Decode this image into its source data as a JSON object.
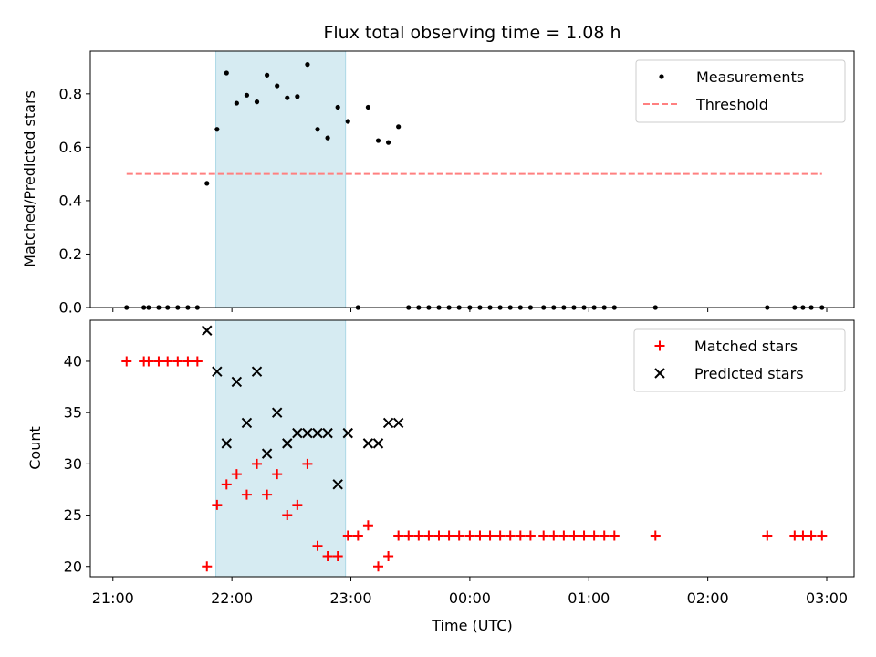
{
  "chart_data": {
    "type": "scatter",
    "title": "Flux total observing time = 1.08 h",
    "xlabel": "Time (UTC)",
    "x_unit": "hours since 21:00 UTC",
    "x_ticks": [
      {
        "value": 0,
        "label": "21:00"
      },
      {
        "value": 1,
        "label": "22:00"
      },
      {
        "value": 2,
        "label": "23:00"
      },
      {
        "value": 3,
        "label": "00:00"
      },
      {
        "value": 4,
        "label": "01:00"
      },
      {
        "value": 5,
        "label": "02:00"
      },
      {
        "value": 6,
        "label": "03:00"
      }
    ],
    "xlim": [
      -0.19,
      6.23
    ],
    "highlight_span": {
      "x0": 0.865,
      "x1": 1.955,
      "color": "#add8e6"
    },
    "panels": [
      {
        "id": "top",
        "ylabel": "Matched/Predicted stars",
        "ylim": [
          0,
          0.96
        ],
        "y_ticks": [
          {
            "value": 0.0,
            "label": "0.0"
          },
          {
            "value": 0.2,
            "label": "0.2"
          },
          {
            "value": 0.4,
            "label": "0.4"
          },
          {
            "value": 0.6,
            "label": "0.6"
          },
          {
            "value": 0.8,
            "label": "0.8"
          }
        ],
        "legend": {
          "position": "upper right",
          "entries": [
            "Measurements",
            "Threshold"
          ]
        },
        "series": [
          {
            "name": "Measurements",
            "marker": "dot",
            "color": "#000000",
            "points": [
              [
                0.115,
                0
              ],
              [
                0.26,
                0
              ],
              [
                0.3,
                0
              ],
              [
                0.385,
                0
              ],
              [
                0.46,
                0
              ],
              [
                0.545,
                0
              ],
              [
                0.63,
                0
              ],
              [
                0.71,
                0
              ],
              [
                0.79,
                0.465
              ],
              [
                0.875,
                0.667
              ],
              [
                0.955,
                0.878
              ],
              [
                1.04,
                0.765
              ],
              [
                1.125,
                0.795
              ],
              [
                1.21,
                0.77
              ],
              [
                1.295,
                0.87
              ],
              [
                1.38,
                0.83
              ],
              [
                1.465,
                0.785
              ],
              [
                1.55,
                0.79
              ],
              [
                1.635,
                0.91
              ],
              [
                1.72,
                0.667
              ],
              [
                1.805,
                0.635
              ],
              [
                1.89,
                0.75
              ],
              [
                1.975,
                0.697
              ],
              [
                2.06,
                0
              ],
              [
                2.145,
                0.75
              ],
              [
                2.23,
                0.625
              ],
              [
                2.315,
                0.618
              ],
              [
                2.4,
                0.677
              ],
              [
                2.485,
                0
              ],
              [
                2.57,
                0
              ],
              [
                2.655,
                0
              ],
              [
                2.74,
                0
              ],
              [
                2.825,
                0
              ],
              [
                2.91,
                0
              ],
              [
                3.0,
                0
              ],
              [
                3.085,
                0
              ],
              [
                3.17,
                0
              ],
              [
                3.255,
                0
              ],
              [
                3.34,
                0
              ],
              [
                3.425,
                0
              ],
              [
                3.51,
                0
              ],
              [
                3.62,
                0
              ],
              [
                3.705,
                0
              ],
              [
                3.79,
                0
              ],
              [
                3.875,
                0
              ],
              [
                3.96,
                0
              ],
              [
                4.045,
                0
              ],
              [
                4.13,
                0
              ],
              [
                4.215,
                0
              ],
              [
                4.56,
                0
              ],
              [
                5.5,
                0
              ],
              [
                5.73,
                0
              ],
              [
                5.8,
                0
              ],
              [
                5.87,
                0
              ],
              [
                5.96,
                0
              ]
            ]
          },
          {
            "name": "Threshold",
            "marker": "dashed-line",
            "color": "#ff8080",
            "value": 0.5,
            "x_range": [
              0.115,
              5.96
            ]
          }
        ]
      },
      {
        "id": "bottom",
        "ylabel": "Count",
        "ylim": [
          19,
          44
        ],
        "y_ticks": [
          {
            "value": 20,
            "label": "20"
          },
          {
            "value": 25,
            "label": "25"
          },
          {
            "value": 30,
            "label": "30"
          },
          {
            "value": 35,
            "label": "35"
          },
          {
            "value": 40,
            "label": "40"
          }
        ],
        "legend": {
          "position": "upper right",
          "entries": [
            "Matched stars",
            "Predicted stars"
          ]
        },
        "series": [
          {
            "name": "Matched stars",
            "marker": "plus",
            "color": "#ff0000",
            "points": [
              [
                0.115,
                40
              ],
              [
                0.26,
                40
              ],
              [
                0.3,
                40
              ],
              [
                0.385,
                40
              ],
              [
                0.46,
                40
              ],
              [
                0.545,
                40
              ],
              [
                0.63,
                40
              ],
              [
                0.71,
                40
              ],
              [
                0.79,
                20
              ],
              [
                0.875,
                26
              ],
              [
                0.955,
                28
              ],
              [
                1.04,
                29
              ],
              [
                1.125,
                27
              ],
              [
                1.21,
                30
              ],
              [
                1.295,
                27
              ],
              [
                1.38,
                29
              ],
              [
                1.465,
                25
              ],
              [
                1.55,
                26
              ],
              [
                1.635,
                30
              ],
              [
                1.72,
                22
              ],
              [
                1.805,
                21
              ],
              [
                1.89,
                21
              ],
              [
                1.975,
                23
              ],
              [
                2.06,
                23
              ],
              [
                2.145,
                24
              ],
              [
                2.23,
                20
              ],
              [
                2.315,
                21
              ],
              [
                2.4,
                23
              ],
              [
                2.485,
                23
              ],
              [
                2.57,
                23
              ],
              [
                2.655,
                23
              ],
              [
                2.74,
                23
              ],
              [
                2.825,
                23
              ],
              [
                2.91,
                23
              ],
              [
                3.0,
                23
              ],
              [
                3.085,
                23
              ],
              [
                3.17,
                23
              ],
              [
                3.255,
                23
              ],
              [
                3.34,
                23
              ],
              [
                3.425,
                23
              ],
              [
                3.51,
                23
              ],
              [
                3.62,
                23
              ],
              [
                3.705,
                23
              ],
              [
                3.79,
                23
              ],
              [
                3.875,
                23
              ],
              [
                3.96,
                23
              ],
              [
                4.045,
                23
              ],
              [
                4.13,
                23
              ],
              [
                4.215,
                23
              ],
              [
                4.56,
                23
              ],
              [
                5.5,
                23
              ],
              [
                5.73,
                23
              ],
              [
                5.8,
                23
              ],
              [
                5.87,
                23
              ],
              [
                5.96,
                23
              ]
            ]
          },
          {
            "name": "Predicted stars",
            "marker": "x",
            "color": "#000000",
            "points": [
              [
                0.79,
                43
              ],
              [
                0.875,
                39
              ],
              [
                0.955,
                32
              ],
              [
                1.04,
                38
              ],
              [
                1.125,
                34
              ],
              [
                1.21,
                39
              ],
              [
                1.295,
                31
              ],
              [
                1.38,
                35
              ],
              [
                1.465,
                32
              ],
              [
                1.55,
                33
              ],
              [
                1.635,
                33
              ],
              [
                1.72,
                33
              ],
              [
                1.805,
                33
              ],
              [
                1.89,
                28
              ],
              [
                1.975,
                33
              ],
              [
                2.145,
                32
              ],
              [
                2.23,
                32
              ],
              [
                2.315,
                34
              ],
              [
                2.4,
                34
              ]
            ]
          }
        ]
      }
    ]
  }
}
